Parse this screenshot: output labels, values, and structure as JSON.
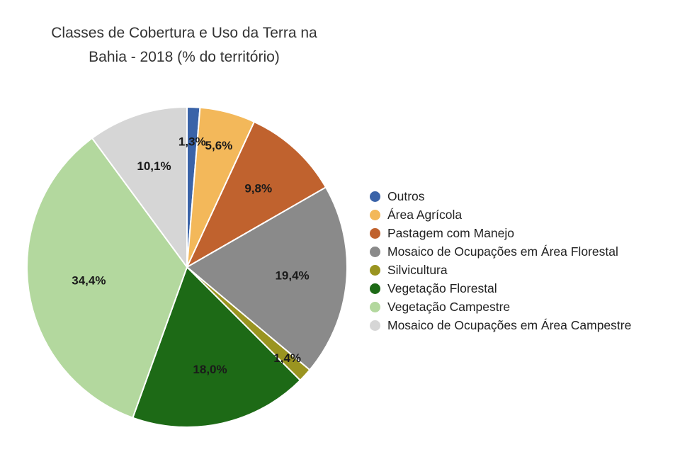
{
  "chart_data": {
    "type": "pie",
    "title": [
      "Classes de Cobertura e Uso da Terra na",
      "Bahia - 2018 (% do território)"
    ],
    "unit": "% do território",
    "start_angle_deg": 0,
    "direction": "clockwise",
    "slices": [
      {
        "name": "Outros",
        "value": 1.3,
        "label": "1,3%",
        "color": "#3a63a8"
      },
      {
        "name": "Área Agrícola",
        "value": 5.6,
        "label": "5,6%",
        "color": "#f3b85a"
      },
      {
        "name": "Pastagem com Manejo",
        "value": 9.8,
        "label": "9,8%",
        "color": "#c0622e"
      },
      {
        "name": "Mosaico de Ocupações em Área Florestal",
        "value": 19.4,
        "label": "19,4%",
        "color": "#8a8a8a"
      },
      {
        "name": "Silvicultura",
        "value": 1.4,
        "label": "1,4%",
        "color": "#9a9420"
      },
      {
        "name": "Vegetação Florestal",
        "value": 18.0,
        "label": "18,0%",
        "color": "#1d6a16"
      },
      {
        "name": "Vegetação Campestre",
        "value": 34.4,
        "label": "34,4%",
        "color": "#b3d89e"
      },
      {
        "name": "Mosaico de Ocupações em Área Campestre",
        "value": 10.1,
        "label": "10,1%",
        "color": "#d6d6d6"
      }
    ],
    "legend_position": "right"
  }
}
